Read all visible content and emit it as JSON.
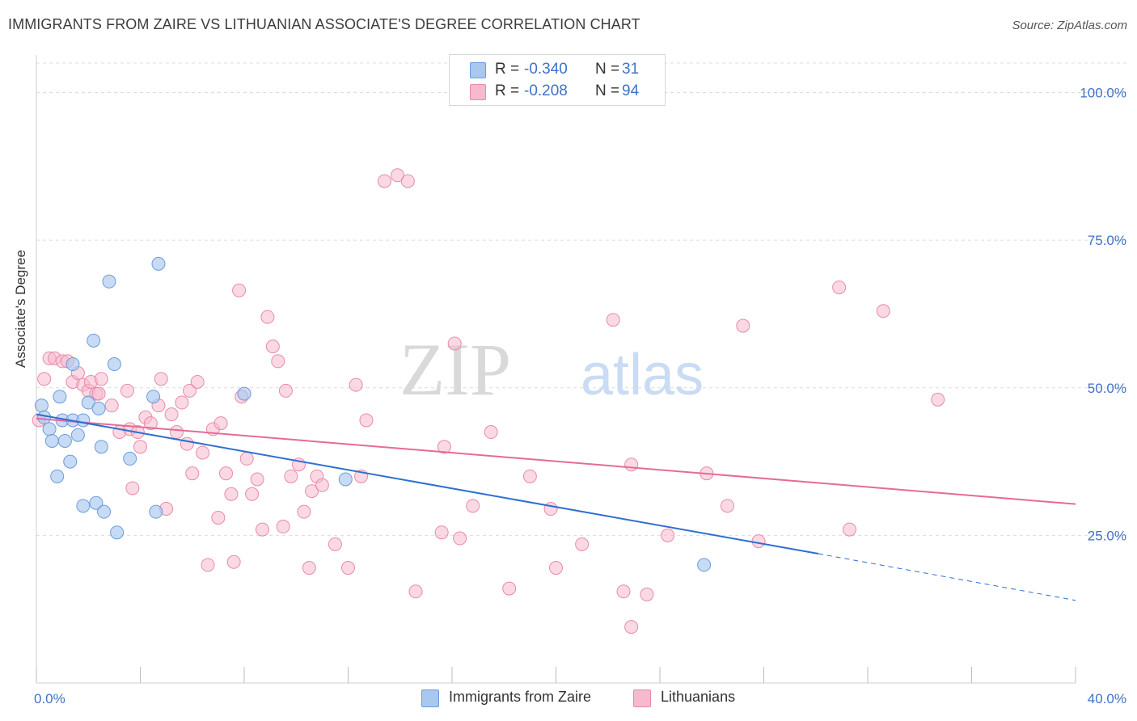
{
  "title": "IMMIGRANTS FROM ZAIRE VS LITHUANIAN ASSOCIATE'S DEGREE CORRELATION CHART",
  "source": "Source: ZipAtlas.com",
  "watermark": {
    "part1": "ZIP",
    "part2": "atlas"
  },
  "legend": {
    "rows": [
      {
        "r_label": "R =",
        "r_value": "-0.340",
        "n_label": "N =",
        "n_value": "31"
      },
      {
        "r_label": "R =",
        "r_value": "-0.208",
        "n_label": "N =",
        "n_value": "94"
      }
    ]
  },
  "colors": {
    "blue_fill": "#a9c8ef",
    "blue_stroke": "#6d9bd9",
    "blue_line": "#2e6fd1",
    "pink_fill": "#f6b9cd",
    "pink_stroke": "#e88aa9",
    "pink_line": "#e56b97",
    "tick_text": "#3f72c6",
    "grid": "#dcdcdc"
  },
  "chart_data": {
    "type": "scatter",
    "title": "IMMIGRANTS FROM ZAIRE VS LITHUANIAN ASSOCIATE'S DEGREE CORRELATION CHART",
    "xlabel": "",
    "ylabel": "Associate's Degree",
    "xlim": [
      0,
      40
    ],
    "ylim": [
      0,
      105
    ],
    "x_tick_labels": [
      "0.0%",
      "40.0%"
    ],
    "y_ticks": [
      25,
      50,
      75,
      100
    ],
    "y_tick_labels": [
      "25.0%",
      "50.0%",
      "75.0%",
      "100.0%"
    ],
    "grid": true,
    "legend_position": "top-center",
    "series": [
      {
        "name": "Immigrants from Zaire",
        "color": "#a9c8ef",
        "points": [
          [
            0.2,
            47
          ],
          [
            0.3,
            45
          ],
          [
            0.5,
            43
          ],
          [
            0.6,
            41
          ],
          [
            0.8,
            35
          ],
          [
            0.9,
            48.5
          ],
          [
            1.0,
            44.5
          ],
          [
            1.1,
            41
          ],
          [
            1.3,
            37.5
          ],
          [
            1.4,
            44.5
          ],
          [
            1.4,
            54
          ],
          [
            1.6,
            42
          ],
          [
            1.8,
            30
          ],
          [
            1.8,
            44.5
          ],
          [
            2.0,
            47.5
          ],
          [
            2.2,
            58
          ],
          [
            2.3,
            30.5
          ],
          [
            2.4,
            46.5
          ],
          [
            2.5,
            40
          ],
          [
            2.6,
            29
          ],
          [
            2.8,
            68
          ],
          [
            3.0,
            54
          ],
          [
            3.1,
            25.5
          ],
          [
            3.6,
            38
          ],
          [
            4.5,
            48.5
          ],
          [
            4.6,
            29
          ],
          [
            4.7,
            71
          ],
          [
            8.0,
            49
          ],
          [
            11.9,
            34.5
          ],
          [
            25.7,
            20
          ]
        ],
        "trend": {
          "x0": 0,
          "y0": 45.5,
          "x1": 30.1,
          "y1": 21.9,
          "dashed_to_x": 40,
          "dashed_to_y": 14
        }
      },
      {
        "name": "Lithuanians",
        "color": "#f6b9cd",
        "points": [
          [
            0.1,
            44.5
          ],
          [
            0.3,
            51.5
          ],
          [
            0.5,
            55
          ],
          [
            0.7,
            55
          ],
          [
            1.0,
            54.5
          ],
          [
            1.2,
            54.5
          ],
          [
            1.4,
            51
          ],
          [
            1.6,
            52.5
          ],
          [
            1.8,
            50.5
          ],
          [
            2.0,
            49.5
          ],
          [
            2.1,
            51
          ],
          [
            2.3,
            49
          ],
          [
            2.4,
            49
          ],
          [
            2.5,
            51.5
          ],
          [
            2.9,
            47
          ],
          [
            3.2,
            42.5
          ],
          [
            3.5,
            49.5
          ],
          [
            3.6,
            43
          ],
          [
            3.7,
            33
          ],
          [
            3.9,
            42.5
          ],
          [
            4.0,
            40
          ],
          [
            4.2,
            45
          ],
          [
            4.4,
            44
          ],
          [
            4.7,
            47
          ],
          [
            4.8,
            51.5
          ],
          [
            5.0,
            29.5
          ],
          [
            5.2,
            45.5
          ],
          [
            5.4,
            42.5
          ],
          [
            5.6,
            47.5
          ],
          [
            5.8,
            40.5
          ],
          [
            5.9,
            49.5
          ],
          [
            6.0,
            35.5
          ],
          [
            6.2,
            51
          ],
          [
            6.4,
            39
          ],
          [
            6.6,
            20
          ],
          [
            6.8,
            43
          ],
          [
            7.0,
            28
          ],
          [
            7.1,
            44
          ],
          [
            7.3,
            35.5
          ],
          [
            7.5,
            32
          ],
          [
            7.6,
            20.5
          ],
          [
            7.8,
            66.5
          ],
          [
            7.9,
            48.5
          ],
          [
            8.1,
            38
          ],
          [
            8.3,
            32
          ],
          [
            8.5,
            34.5
          ],
          [
            8.7,
            26
          ],
          [
            8.9,
            62
          ],
          [
            9.1,
            57
          ],
          [
            9.3,
            54.5
          ],
          [
            9.5,
            26.5
          ],
          [
            9.6,
            49.5
          ],
          [
            9.8,
            35
          ],
          [
            10.1,
            37
          ],
          [
            10.3,
            29
          ],
          [
            10.5,
            19.5
          ],
          [
            10.6,
            32.5
          ],
          [
            10.8,
            35
          ],
          [
            11.0,
            33.5
          ],
          [
            11.5,
            23.5
          ],
          [
            12.0,
            19.5
          ],
          [
            12.3,
            50.5
          ],
          [
            12.5,
            35
          ],
          [
            12.7,
            44.5
          ],
          [
            13.4,
            85
          ],
          [
            13.9,
            86
          ],
          [
            14.3,
            85
          ],
          [
            14.6,
            15.5
          ],
          [
            15.6,
            25.5
          ],
          [
            15.7,
            40
          ],
          [
            16.1,
            57.5
          ],
          [
            16.3,
            24.5
          ],
          [
            16.8,
            30
          ],
          [
            17.5,
            42.5
          ],
          [
            18.2,
            16
          ],
          [
            19.0,
            35
          ],
          [
            19.8,
            29.5
          ],
          [
            20.0,
            19.5
          ],
          [
            21.0,
            23.5
          ],
          [
            22.2,
            61.5
          ],
          [
            22.6,
            15.5
          ],
          [
            22.9,
            9.5
          ],
          [
            22.9,
            37
          ],
          [
            23.5,
            15
          ],
          [
            24.3,
            25
          ],
          [
            25.8,
            35.5
          ],
          [
            26.6,
            30
          ],
          [
            27.2,
            60.5
          ],
          [
            27.8,
            24
          ],
          [
            30.9,
            67
          ],
          [
            31.3,
            26
          ],
          [
            32.6,
            63
          ],
          [
            34.7,
            48
          ]
        ],
        "trend": {
          "x0": 0,
          "y0": 44.8,
          "x1": 40,
          "y1": 30.3
        }
      }
    ]
  },
  "bottom_legend": [
    {
      "label": "Immigrants from Zaire"
    },
    {
      "label": "Lithuanians"
    }
  ]
}
